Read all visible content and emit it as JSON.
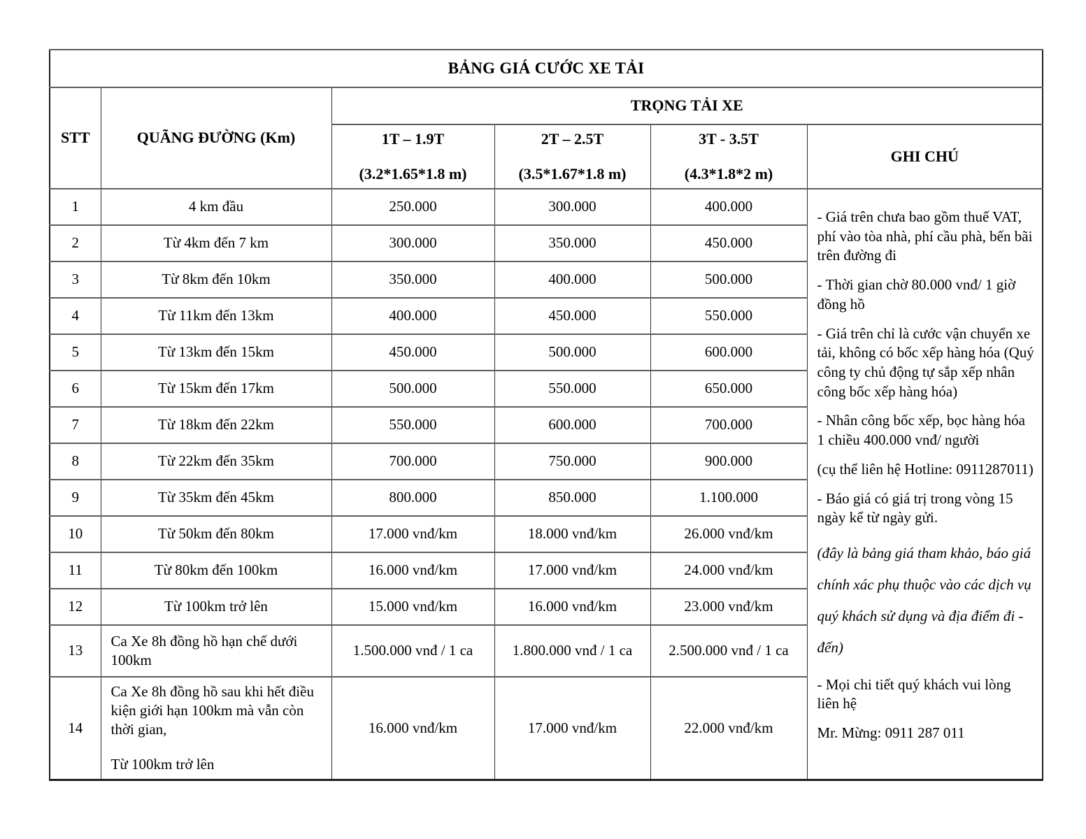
{
  "title": "BẢNG GIÁ CƯỚC XE TẢI",
  "header": {
    "stt": "STT",
    "distance": "QUÃNG ĐƯỜNG (Km)",
    "tonnage_group": "TRỌNG TẢI XE",
    "notes": "GHI CHÚ",
    "columns": [
      {
        "range": "1T – 1.9T",
        "dimensions": "(3.2*1.65*1.8 m)"
      },
      {
        "range": "2T – 2.5T",
        "dimensions": "(3.5*1.67*1.8 m)"
      },
      {
        "range": "3T - 3.5T",
        "dimensions": "(4.3*1.8*2 m)"
      }
    ]
  },
  "rows": [
    {
      "stt": "1",
      "distance_lines": [
        "4 km đầu"
      ],
      "align": "center",
      "prices": [
        "250.000",
        "300.000",
        "400.000"
      ]
    },
    {
      "stt": "2",
      "distance_lines": [
        "Từ 4km đến 7 km"
      ],
      "align": "center",
      "prices": [
        "300.000",
        "350.000",
        "450.000"
      ]
    },
    {
      "stt": "3",
      "distance_lines": [
        "Từ 8km đến 10km"
      ],
      "align": "center",
      "prices": [
        "350.000",
        "400.000",
        "500.000"
      ]
    },
    {
      "stt": "4",
      "distance_lines": [
        "Từ 11km đến 13km"
      ],
      "align": "center",
      "prices": [
        "400.000",
        "450.000",
        "550.000"
      ]
    },
    {
      "stt": "5",
      "distance_lines": [
        "Từ 13km đến 15km"
      ],
      "align": "center",
      "prices": [
        "450.000",
        "500.000",
        "600.000"
      ]
    },
    {
      "stt": "6",
      "distance_lines": [
        "Từ 15km đến 17km"
      ],
      "align": "center",
      "prices": [
        "500.000",
        "550.000",
        "650.000"
      ]
    },
    {
      "stt": "7",
      "distance_lines": [
        "Từ 18km đến 22km"
      ],
      "align": "center",
      "prices": [
        "550.000",
        "600.000",
        "700.000"
      ]
    },
    {
      "stt": "8",
      "distance_lines": [
        "Từ 22km đến 35km"
      ],
      "align": "center",
      "prices": [
        "700.000",
        "750.000",
        "900.000"
      ]
    },
    {
      "stt": "9",
      "distance_lines": [
        "Từ 35km đến 45km"
      ],
      "align": "center",
      "prices": [
        "800.000",
        "850.000",
        "1.100.000"
      ]
    },
    {
      "stt": "10",
      "distance_lines": [
        "Từ 50km đến 80km"
      ],
      "align": "center",
      "prices": [
        "17.000 vnđ/km",
        "18.000 vnđ/km",
        "26.000 vnđ/km"
      ]
    },
    {
      "stt": "11",
      "distance_lines": [
        "Từ 80km đến 100km"
      ],
      "align": "center",
      "prices": [
        "16.000 vnđ/km",
        "17.000 vnđ/km",
        "24.000 vnđ/km"
      ]
    },
    {
      "stt": "12",
      "distance_lines": [
        "Từ 100km trở lên"
      ],
      "align": "center",
      "prices": [
        "15.000 vnđ/km",
        "16.000 vnđ/km",
        "23.000 vnđ/km"
      ]
    },
    {
      "stt": "13",
      "distance_lines": [
        "Ca Xe 8h đồng hồ hạn chế dưới 100km"
      ],
      "align": "left",
      "prices": [
        "1.500.000 vnđ / 1 ca",
        "1.800.000 vnđ / 1 ca",
        "2.500.000 vnđ / 1 ca"
      ]
    },
    {
      "stt": "14",
      "distance_lines": [
        "Ca Xe 8h đồng hồ sau khi hết điều kiện giới hạn 100km mà vẫn còn thời gian,",
        "Từ 100km trở lên"
      ],
      "align": "left",
      "prices": [
        "16.000 vnđ/km",
        "17.000 vnđ/km",
        "22.000 vnđ/km"
      ]
    }
  ],
  "notes": {
    "paragraphs": [
      {
        "text": "- Giá trên chưa bao gồm thuế VAT, phí vào tòa nhà, phí cầu phà, bến bãi trên đường đi",
        "style": "normal"
      },
      {
        "text": "- Thời gian chờ 80.000 vnđ/ 1 giờ đồng hồ",
        "style": "normal"
      },
      {
        "text": "- Giá trên chỉ là cước vận chuyển xe tải, không có bốc xếp hàng hóa (Quý công ty chủ động tự sắp xếp nhân công bốc xếp hàng hóa)",
        "style": "normal"
      },
      {
        "text": "- Nhân công bốc xếp, bọc hàng hóa 1 chiều 400.000 vnđ/ người",
        "style": "normal"
      },
      {
        "text": "(cụ thể liên hệ Hotline: 0911287011)",
        "style": "normal"
      },
      {
        "text": "- Báo giá có giá trị trong vòng 15 ngày kể từ ngày gửi.",
        "style": "normal"
      },
      {
        "text": "(đây là bảng giá tham khảo, báo giá chính xác phụ thuộc vào các dịch vụ quý khách sử dụng và địa điểm đi - đến)",
        "style": "italic"
      },
      {
        "text": "- Mọi chi tiết quý khách vui lòng liên hệ",
        "style": "after-italic"
      },
      {
        "text": "Mr. Mừng:  0911 287 011",
        "style": "normal"
      }
    ]
  }
}
